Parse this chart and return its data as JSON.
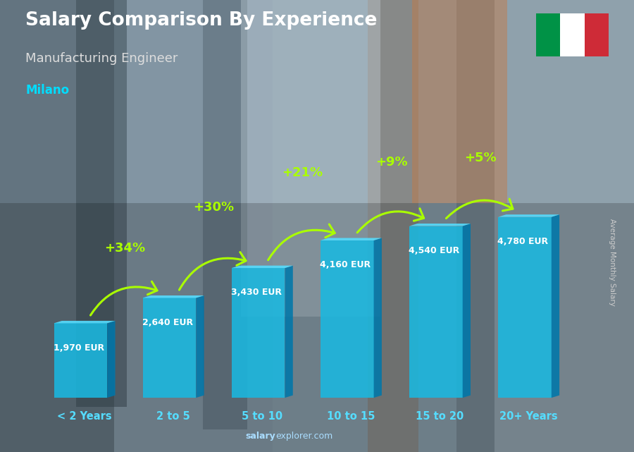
{
  "title": "Salary Comparison By Experience",
  "subtitle": "Manufacturing Engineer",
  "city": "Milano",
  "ylabel": "Average Monthly Salary",
  "watermark": "salaryexplorer.com",
  "categories": [
    "< 2 Years",
    "2 to 5",
    "5 to 10",
    "10 to 15",
    "15 to 20",
    "20+ Years"
  ],
  "values": [
    1970,
    2640,
    3430,
    4160,
    4540,
    4780
  ],
  "value_labels": [
    "1,970 EUR",
    "2,640 EUR",
    "3,430 EUR",
    "4,160 EUR",
    "4,540 EUR",
    "4,780 EUR"
  ],
  "pct_changes": [
    "+34%",
    "+30%",
    "+21%",
    "+9%",
    "+5%"
  ],
  "bar_color_front": "#1ab8e0",
  "bar_color_side": "#0077aa",
  "bar_color_top": "#55ddff",
  "title_color": "#ffffff",
  "subtitle_color": "#dddddd",
  "city_color": "#00ddff",
  "label_color": "#ffffff",
  "pct_color": "#aaff00",
  "watermark_bold": "salary",
  "watermark_normal": "explorer.com",
  "watermark_color": "#aaddff",
  "xtick_color": "#55ddff",
  "ylabel_color": "#cccccc",
  "bar_width": 0.6,
  "figsize": [
    9.0,
    6.41
  ],
  "dpi": 100,
  "bg_colors": [
    "#6a7d8a",
    "#8a9aaa",
    "#7a8d9a",
    "#9aacb8",
    "#8a9eaa"
  ],
  "flag_colors": [
    "#009246",
    "#ffffff",
    "#ce2b37"
  ]
}
